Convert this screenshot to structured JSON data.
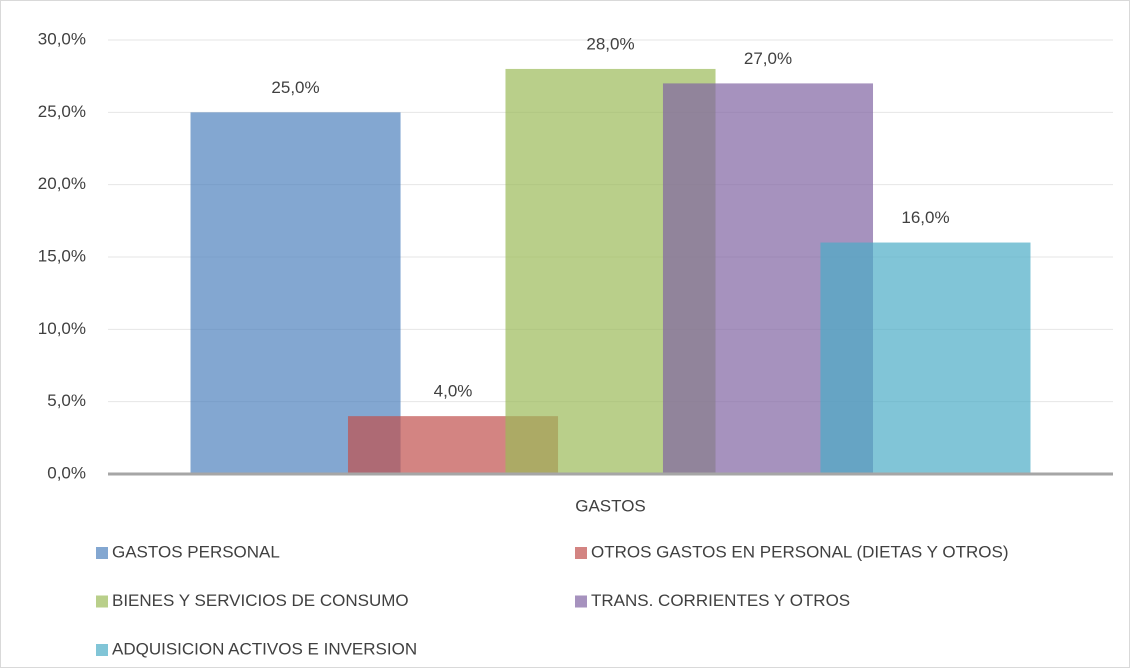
{
  "chart_data": {
    "type": "bar",
    "categories": [
      "GASTOS"
    ],
    "series": [
      {
        "name": "GASTOS PERSONAL",
        "color": "#4f81bd",
        "values": [
          25
        ],
        "value_labels": [
          "25,0%"
        ]
      },
      {
        "name": "OTROS GASTOS EN PERSONAL (DIETAS Y OTROS)",
        "color": "#c0504d",
        "values": [
          4
        ],
        "value_labels": [
          "4,0%"
        ]
      },
      {
        "name": "BIENES Y SERVICIOS DE CONSUMO",
        "color": "#9bbb59",
        "values": [
          28
        ],
        "value_labels": [
          "28,0%"
        ]
      },
      {
        "name": "TRANS. CORRIENTES Y OTROS",
        "color": "#8064a2",
        "values": [
          27
        ],
        "value_labels": [
          "27,0%"
        ]
      },
      {
        "name": "ADQUISICION ACTIVOS E INVERSION",
        "color": "#4bacc6",
        "values": [
          16
        ],
        "value_labels": [
          "16,0%"
        ]
      }
    ],
    "ylim": [
      0,
      30
    ],
    "yticks": [
      {
        "value": 0,
        "label": "0,0%"
      },
      {
        "value": 5,
        "label": "5,0%"
      },
      {
        "value": 10,
        "label": "10,0%"
      },
      {
        "value": 15,
        "label": "15,0%"
      },
      {
        "value": 20,
        "label": "20,0%"
      },
      {
        "value": 25,
        "label": "25,0%"
      },
      {
        "value": 30,
        "label": "30,0%"
      }
    ],
    "grid": true,
    "legend": "bottom"
  }
}
